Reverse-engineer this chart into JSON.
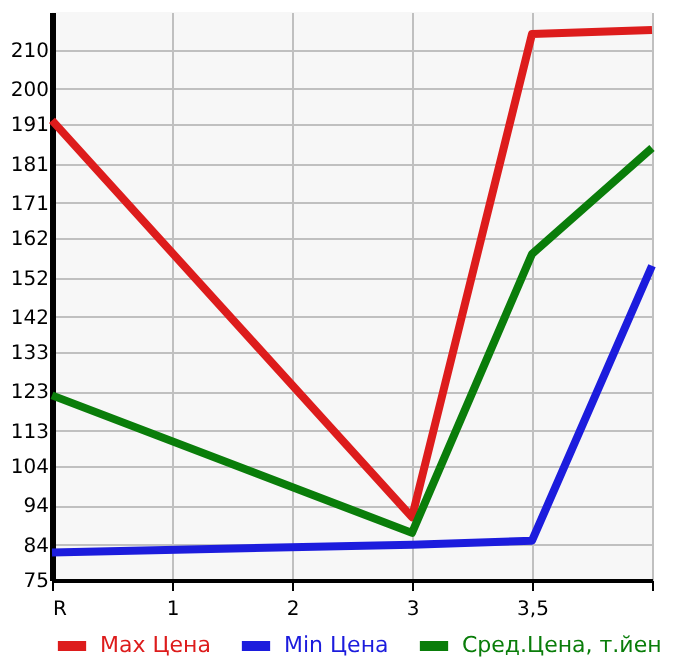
{
  "chart_data": {
    "type": "line",
    "categories": [
      "R",
      "1",
      "2",
      "3",
      "3,5",
      null
    ],
    "series": [
      {
        "name": "Max Цена",
        "color": "#dd1c1c",
        "values": [
          192,
          null,
          null,
          91,
          214,
          215
        ]
      },
      {
        "name": "Min Цена",
        "color": "#1c1cdd",
        "values": [
          82,
          null,
          null,
          84,
          85,
          155
        ]
      },
      {
        "name": "Сред.Цена, т.йен",
        "color": "#0a7d0a",
        "values": [
          122,
          null,
          null,
          87,
          158,
          185
        ]
      }
    ],
    "ylim": [
      75,
      219.6
    ],
    "yticks": [
      75,
      84,
      94,
      104,
      113,
      123,
      133,
      142,
      152,
      162,
      171,
      181,
      191,
      200,
      210
    ],
    "grid": true,
    "legend": "bottom",
    "marker": "none",
    "line_style": "solid"
  }
}
